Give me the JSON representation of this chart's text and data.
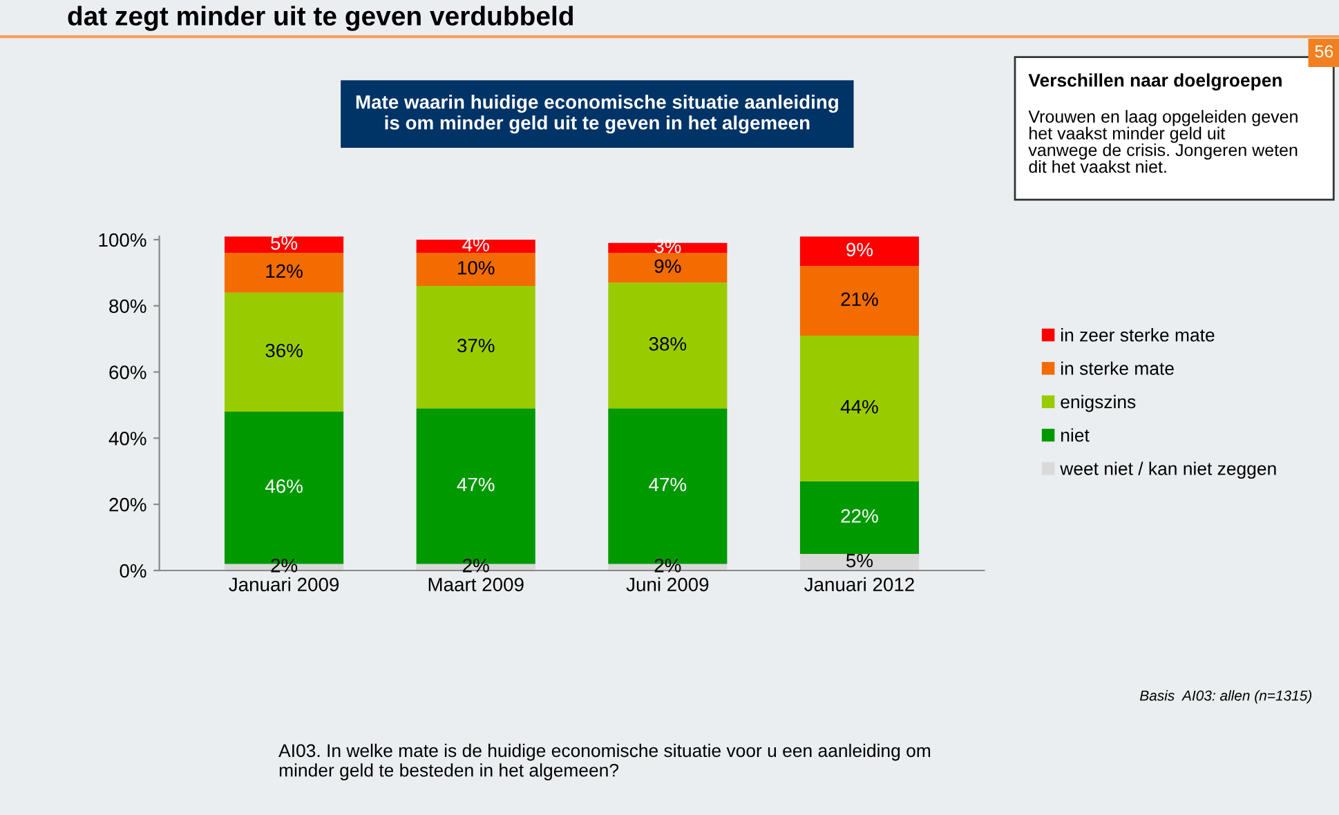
{
  "chart_data": {
    "type": "bar",
    "stacked": true,
    "title": "Mate waarin huidige economische situatie aanleiding\nis om minder geld uit te geven in het algemeen",
    "categories": [
      "Januari 2009",
      "Maart 2009",
      "Juni 2009",
      "Januari 2012"
    ],
    "series": [
      {
        "name": "weet niet / kan niet zeggen",
        "color": "#d9d9d9",
        "values": [
          2,
          2,
          2,
          5
        ],
        "value_labels": [
          "2%",
          "2%",
          "2%",
          "5%"
        ]
      },
      {
        "name": "niet",
        "color": "#009900",
        "values": [
          46,
          47,
          47,
          22
        ],
        "value_labels": [
          "46%",
          "47%",
          "47%",
          "22%"
        ]
      },
      {
        "name": "enigszins",
        "color": "#99cc00",
        "values": [
          36,
          37,
          38,
          44
        ],
        "value_labels": [
          "36%",
          "37%",
          "38%",
          "44%"
        ]
      },
      {
        "name": "in sterke mate",
        "color": "#f26c00",
        "values": [
          12,
          10,
          9,
          21
        ],
        "value_labels": [
          "12%",
          "10%",
          "9%",
          "21%"
        ]
      },
      {
        "name": "in zeer sterke mate",
        "color": "#ff0000",
        "values": [
          5,
          4,
          3,
          9
        ],
        "value_labels": [
          "5%",
          "4%",
          "3%",
          "9%"
        ]
      }
    ],
    "ylim": [
      0,
      101
    ],
    "yticks": [
      {
        "value": 0,
        "label": "0%"
      },
      {
        "value": 20,
        "label": "20%"
      },
      {
        "value": 40,
        "label": "40%"
      },
      {
        "value": 60,
        "label": "60%"
      },
      {
        "value": 80,
        "label": "80%"
      },
      {
        "value": 100,
        "label": "100%"
      }
    ],
    "grid": false,
    "legend": "right",
    "annotations": [
      "dat zegt minder uit te geven verdubbeld",
      "56",
      "Verschillen naar doelgroepen",
      "Vrouwen en laag opgeleiden geven\nhet vaakst minder geld uit\nvanwege de crisis. Jongeren weten\ndit het vaakst niet.",
      "Basis  AI03: allen (n=1315)",
      "AI03. In welke mate is de huidige economische situatie voor u een aanleiding om\nminder geld te besteden in het algemeen?"
    ]
  }
}
